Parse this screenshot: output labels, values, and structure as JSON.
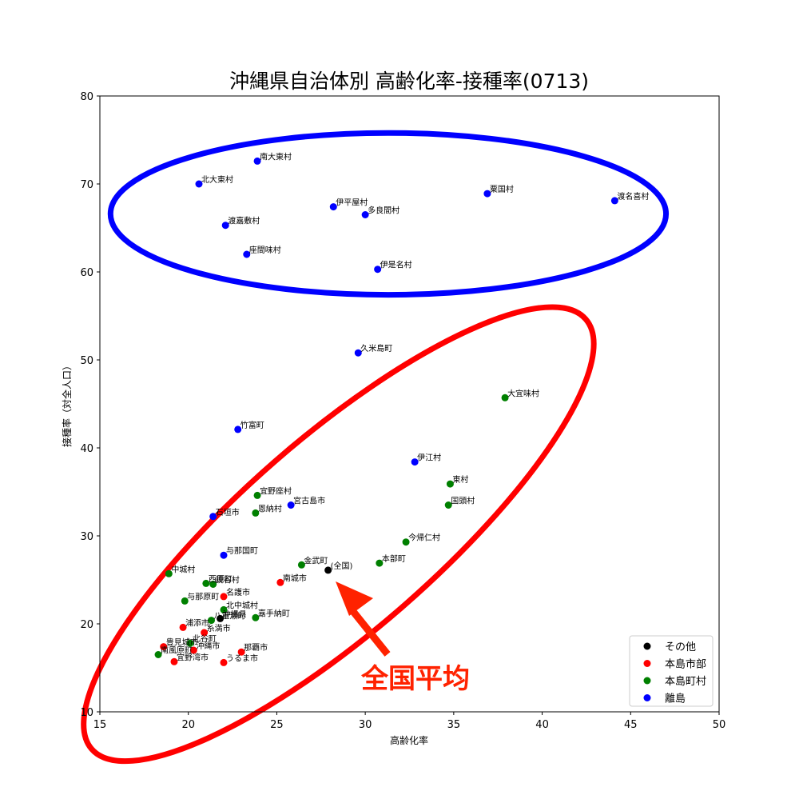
{
  "chart_data": {
    "type": "scatter",
    "title": "沖縄県自治体別 高齢化率-接種率(0713)",
    "xlabel": "高齢化率",
    "ylabel": "接種率（対全人口）",
    "xlim": [
      15,
      50
    ],
    "ylim": [
      10,
      80
    ],
    "xticks": [
      15,
      20,
      25,
      30,
      35,
      40,
      45,
      50
    ],
    "yticks": [
      10,
      20,
      30,
      40,
      50,
      60,
      70,
      80
    ],
    "grid": false,
    "legend_position": "lower-right",
    "series": [
      {
        "name": "その他",
        "color": "#000000",
        "points": [
          {
            "label": "(全国)",
            "x": 27.9,
            "y": 26.1
          },
          {
            "label": "沖縄県",
            "x": 21.8,
            "y": 20.6
          }
        ]
      },
      {
        "name": "本島市部",
        "color": "#ff0000",
        "points": [
          {
            "label": "南城市",
            "x": 25.2,
            "y": 24.7
          },
          {
            "label": "名護市",
            "x": 22.0,
            "y": 23.1
          },
          {
            "label": "浦添市",
            "x": 19.7,
            "y": 19.6
          },
          {
            "label": "糸満市",
            "x": 20.9,
            "y": 19.0
          },
          {
            "label": "那覇市",
            "x": 23.0,
            "y": 16.8
          },
          {
            "label": "うるま市",
            "x": 22.0,
            "y": 15.6
          },
          {
            "label": "宜野湾市",
            "x": 19.2,
            "y": 15.7
          },
          {
            "label": "豊見城市",
            "x": 18.6,
            "y": 17.4
          },
          {
            "label": "沖縄市",
            "x": 20.3,
            "y": 17.0
          }
        ]
      },
      {
        "name": "本島町村",
        "color": "#008000",
        "points": [
          {
            "label": "大宜味村",
            "x": 37.9,
            "y": 45.7
          },
          {
            "label": "東村",
            "x": 34.8,
            "y": 35.9
          },
          {
            "label": "国頭村",
            "x": 34.7,
            "y": 33.5
          },
          {
            "label": "宜野座村",
            "x": 23.9,
            "y": 34.6
          },
          {
            "label": "恩納村",
            "x": 23.8,
            "y": 32.6
          },
          {
            "label": "今帰仁村",
            "x": 32.3,
            "y": 29.3
          },
          {
            "label": "本部町",
            "x": 30.8,
            "y": 26.9
          },
          {
            "label": "金武町",
            "x": 26.4,
            "y": 26.7
          },
          {
            "label": "中城村",
            "x": 18.9,
            "y": 25.7
          },
          {
            "label": "西原町",
            "x": 21.0,
            "y": 24.6
          },
          {
            "label": "読谷村",
            "x": 21.4,
            "y": 24.5
          },
          {
            "label": "与那原町",
            "x": 19.8,
            "y": 22.6
          },
          {
            "label": "北中城村",
            "x": 22.0,
            "y": 21.6
          },
          {
            "label": "嘉手納町",
            "x": 23.8,
            "y": 20.7
          },
          {
            "label": "八重瀬町",
            "x": 21.3,
            "y": 20.4
          },
          {
            "label": "北谷町",
            "x": 20.1,
            "y": 17.8
          },
          {
            "label": "南風原町",
            "x": 18.3,
            "y": 16.5
          }
        ]
      },
      {
        "name": "離島",
        "color": "#0000ff",
        "points": [
          {
            "label": "南大東村",
            "x": 23.9,
            "y": 72.6
          },
          {
            "label": "北大東村",
            "x": 20.6,
            "y": 70.0
          },
          {
            "label": "粟国村",
            "x": 36.9,
            "y": 68.9
          },
          {
            "label": "渡名喜村",
            "x": 44.1,
            "y": 68.1
          },
          {
            "label": "伊平屋村",
            "x": 28.2,
            "y": 67.4
          },
          {
            "label": "多良間村",
            "x": 30.0,
            "y": 66.5
          },
          {
            "label": "渡嘉敷村",
            "x": 22.1,
            "y": 65.3
          },
          {
            "label": "座間味村",
            "x": 23.3,
            "y": 62.0
          },
          {
            "label": "伊是名村",
            "x": 30.7,
            "y": 60.3
          },
          {
            "label": "久米島町",
            "x": 29.6,
            "y": 50.8
          },
          {
            "label": "竹富町",
            "x": 22.8,
            "y": 42.1
          },
          {
            "label": "伊江村",
            "x": 32.8,
            "y": 38.4
          },
          {
            "label": "宮古島市",
            "x": 25.8,
            "y": 33.5
          },
          {
            "label": "石垣市",
            "x": 21.4,
            "y": 32.2
          },
          {
            "label": "与那国町",
            "x": 22.0,
            "y": 27.8
          }
        ]
      }
    ],
    "annotation": {
      "text": "全国平均",
      "color": "#ff2200"
    },
    "highlight_ellipses": [
      {
        "color": "#0000ff",
        "group": "離島"
      },
      {
        "color": "#ff0000",
        "group": "本島"
      }
    ]
  }
}
